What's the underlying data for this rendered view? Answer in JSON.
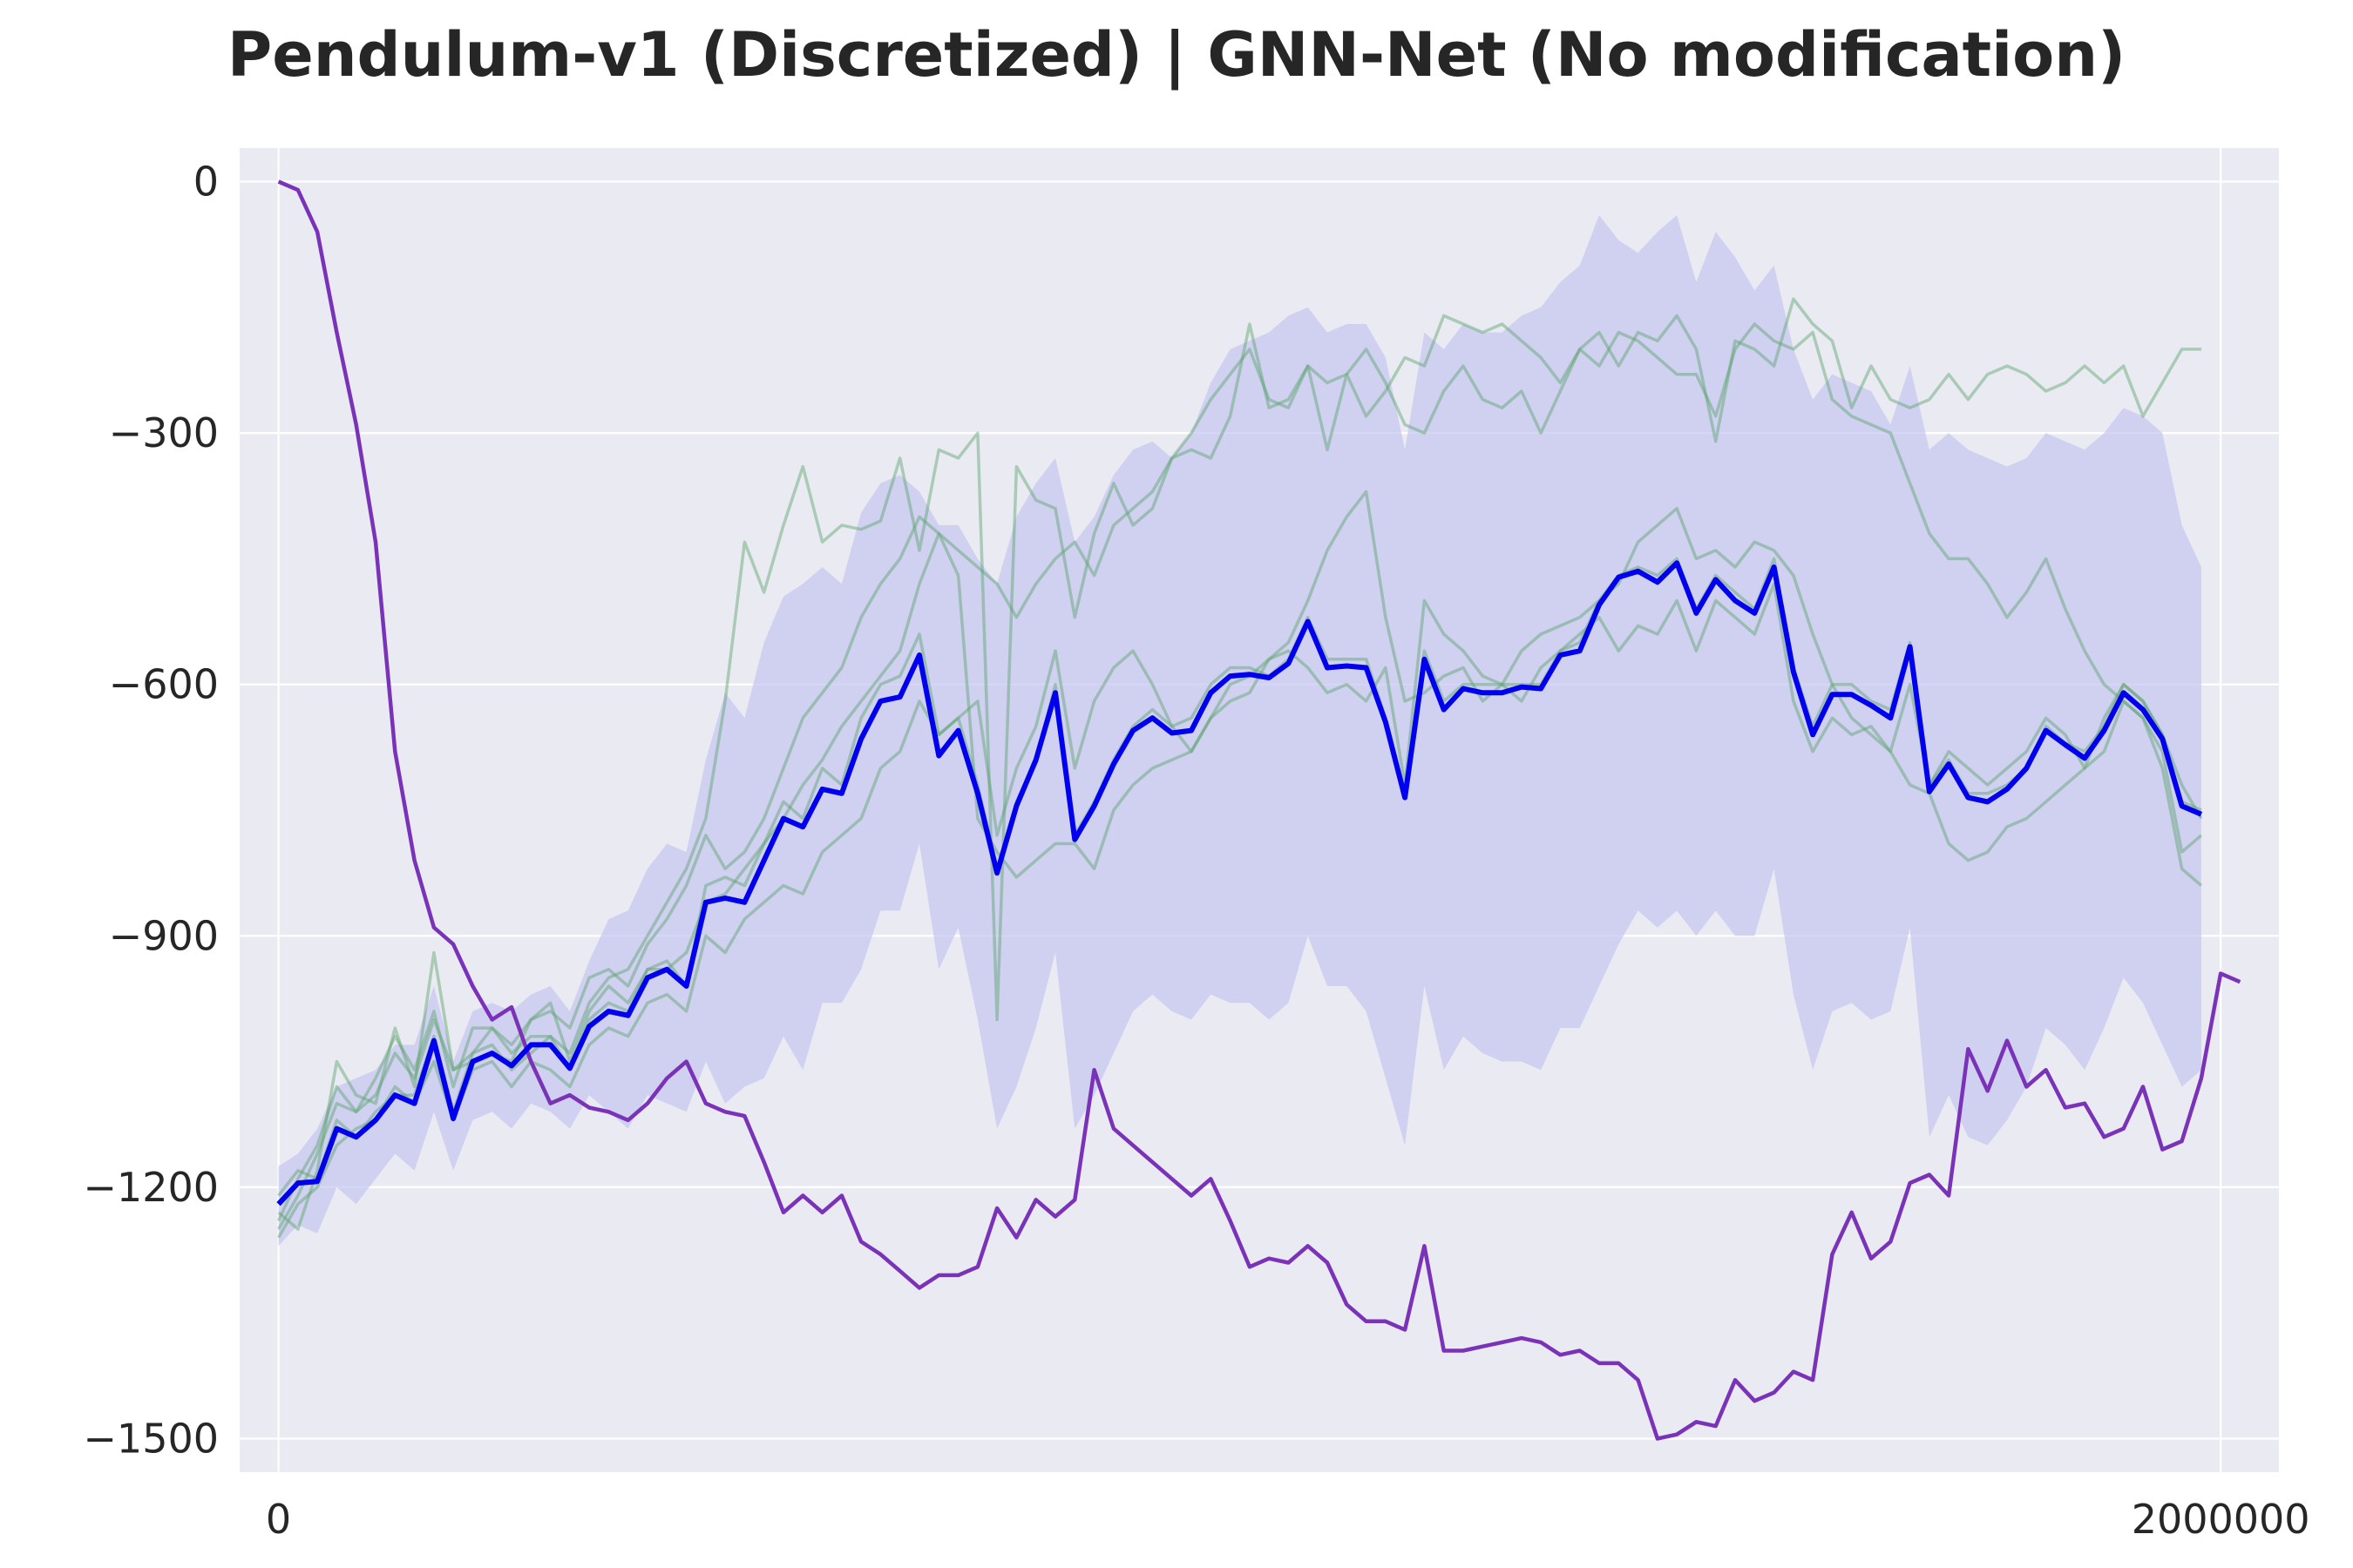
{
  "chart_data": {
    "type": "line",
    "title": "Pendulum-v1 (Discretized) | GNN-Net (No modification)",
    "xlabel": "",
    "ylabel": "",
    "xlim": [
      -40000,
      2060000
    ],
    "ylim": [
      -1540,
      40
    ],
    "x_ticks": [
      0,
      2000000
    ],
    "x_tick_labels": [
      "0",
      "2000000"
    ],
    "y_ticks": [
      0,
      -300,
      -600,
      -900,
      -1200,
      -1500
    ],
    "y_tick_labels": [
      "0",
      "−300",
      "−600",
      "−900",
      "−1200",
      "−1500"
    ],
    "grid": true,
    "legend": "none",
    "colors": {
      "background": "#eaeaf2",
      "grid": "#ffffff",
      "mean": "#0000ee",
      "band": "#c7c7f0",
      "runs": "#5aa36a",
      "baseline": "#7a33b8"
    },
    "x_start": 0,
    "x_step": 20000,
    "series": [
      {
        "role": "mean",
        "values": [
          -1220,
          -1195,
          -1193,
          -1130,
          -1140,
          -1120,
          -1090,
          -1100,
          -1025,
          -1118,
          -1050,
          -1040,
          -1055,
          -1030,
          -1030,
          -1058,
          -1008,
          -990,
          -995,
          -950,
          -940,
          -960,
          -860,
          -855,
          -860,
          -810,
          -760,
          -770,
          -725,
          -730,
          -665,
          -620,
          -615,
          -565,
          -685,
          -655,
          -730,
          -825,
          -745,
          -690,
          -610,
          -785,
          -745,
          -695,
          -655,
          -640,
          -658,
          -655,
          -610,
          -590,
          -588,
          -592,
          -575,
          -525,
          -580,
          -578,
          -580,
          -645,
          -735,
          -570,
          -630,
          -605,
          -610,
          -610,
          -603,
          -605,
          -565,
          -560,
          -505,
          -472,
          -465,
          -478,
          -455,
          -515,
          -475,
          -500,
          -515,
          -460,
          -585,
          -660,
          -612,
          -612,
          -625,
          -640,
          -555,
          -728,
          -695,
          -735,
          -740,
          -725,
          -700,
          -655,
          -672,
          -688,
          -655,
          -610,
          -630,
          -665,
          -745,
          -755
        ]
      },
      {
        "role": "band-upper",
        "values": [
          -1175,
          -1160,
          -1130,
          -1080,
          -1070,
          -1060,
          -1030,
          -1030,
          -960,
          -1050,
          -990,
          -980,
          -990,
          -970,
          -960,
          -990,
          -930,
          -880,
          -870,
          -820,
          -790,
          -800,
          -690,
          -610,
          -640,
          -550,
          -495,
          -480,
          -460,
          -480,
          -395,
          -360,
          -350,
          -370,
          -410,
          -410,
          -450,
          -480,
          -400,
          -360,
          -330,
          -430,
          -400,
          -350,
          -320,
          -310,
          -330,
          -300,
          -240,
          -200,
          -190,
          -180,
          -160,
          -150,
          -180,
          -170,
          -170,
          -210,
          -320,
          -180,
          -200,
          -170,
          -180,
          -180,
          -160,
          -150,
          -120,
          -100,
          -40,
          -70,
          -85,
          -60,
          -40,
          -120,
          -60,
          -90,
          -130,
          -100,
          -200,
          -260,
          -230,
          -240,
          -250,
          -290,
          -220,
          -320,
          -300,
          -320,
          -330,
          -340,
          -330,
          -300,
          -310,
          -320,
          -300,
          -270,
          -280,
          -300,
          -410,
          -460
        ]
      },
      {
        "role": "band-lower",
        "values": [
          -1270,
          -1245,
          -1255,
          -1200,
          -1220,
          -1190,
          -1160,
          -1180,
          -1110,
          -1180,
          -1120,
          -1110,
          -1130,
          -1100,
          -1110,
          -1130,
          -1090,
          -1110,
          -1130,
          -1090,
          -1100,
          -1110,
          -1050,
          -1100,
          -1080,
          -1070,
          -1020,
          -1060,
          -980,
          -980,
          -940,
          -870,
          -870,
          -790,
          -940,
          -890,
          -1000,
          -1130,
          -1080,
          -1010,
          -920,
          -1130,
          -1090,
          -1040,
          -990,
          -970,
          -990,
          -1000,
          -970,
          -980,
          -980,
          -1000,
          -980,
          -900,
          -960,
          -960,
          -990,
          -1070,
          -1150,
          -960,
          -1060,
          -1020,
          -1040,
          -1050,
          -1050,
          -1060,
          -1010,
          -1010,
          -960,
          -910,
          -870,
          -890,
          -870,
          -900,
          -870,
          -900,
          -900,
          -820,
          -970,
          -1060,
          -990,
          -980,
          -1000,
          -990,
          -890,
          -1140,
          -1090,
          -1140,
          -1150,
          -1120,
          -1080,
          -1010,
          -1030,
          -1060,
          -1010,
          -950,
          -980,
          -1030,
          -1080,
          -1060
        ]
      },
      {
        "role": "baseline",
        "values": [
          0,
          -10,
          -60,
          -180,
          -290,
          -430,
          -680,
          -810,
          -890,
          -910,
          -960,
          -1000,
          -985,
          -1050,
          -1100,
          -1090,
          -1105,
          -1110,
          -1120,
          -1100,
          -1070,
          -1050,
          -1100,
          -1110,
          -1115,
          -1170,
          -1230,
          -1210,
          -1230,
          -1210,
          -1265,
          -1280,
          -1300,
          -1320,
          -1305,
          -1305,
          -1295,
          -1225,
          -1260,
          -1215,
          -1235,
          -1215,
          -1060,
          -1130,
          -1150,
          -1170,
          -1190,
          -1210,
          -1190,
          -1240,
          -1295,
          -1285,
          -1290,
          -1270,
          -1290,
          -1340,
          -1360,
          -1360,
          -1370,
          -1270,
          -1395,
          -1395,
          -1390,
          -1385,
          -1380,
          -1385,
          -1400,
          -1395,
          -1410,
          -1410,
          -1430,
          -1500,
          -1495,
          -1480,
          -1485,
          -1430,
          -1455,
          -1445,
          -1420,
          -1430,
          -1280,
          -1230,
          -1285,
          -1265,
          -1195,
          -1185,
          -1210,
          -1035,
          -1085,
          -1025,
          -1080,
          -1060,
          -1105,
          -1100,
          -1140,
          -1130,
          -1080,
          -1155,
          -1145,
          -1070,
          -945,
          -955
        ]
      },
      {
        "role": "run",
        "values": [
          -1250,
          -1210,
          -1160,
          -1100,
          -1110,
          -1070,
          -1020,
          -1060,
          -990,
          -1080,
          -1010,
          -1010,
          -1040,
          -1020,
          -1020,
          -1040,
          -980,
          -950,
          -940,
          -900,
          -860,
          -820,
          -760,
          -620,
          -430,
          -490,
          -410,
          -340,
          -430,
          -410,
          -415,
          -405,
          -330,
          -440,
          -320,
          -330,
          -300,
          -1000,
          -340,
          -380,
          -390,
          -520,
          -420,
          -360,
          -410,
          -390,
          -330,
          -320,
          -330,
          -280,
          -170,
          -270,
          -260,
          -220,
          -320,
          -230,
          -280,
          -250,
          -210,
          -220,
          -160,
          -170,
          -180,
          -170,
          -190,
          -210,
          -240,
          -200,
          -180,
          -220,
          -180,
          -190,
          -160,
          -200,
          -310,
          -190,
          -200,
          -220,
          -140,
          -170,
          -190,
          -270,
          -220,
          -260,
          -270,
          -260,
          -230,
          -260,
          -230,
          -220,
          -230,
          -250,
          -240,
          -220,
          -240,
          -220,
          -280,
          -240,
          -200,
          -200
        ]
      },
      {
        "role": "run",
        "values": [
          -1240,
          -1190,
          -1150,
          -1080,
          -1110,
          -1090,
          -1040,
          -1070,
          -1000,
          -1060,
          -1040,
          -1010,
          -1030,
          -1000,
          -990,
          -1010,
          -950,
          -940,
          -960,
          -910,
          -880,
          -840,
          -780,
          -820,
          -800,
          -760,
          -700,
          -640,
          -610,
          -580,
          -520,
          -480,
          -450,
          -400,
          -420,
          -440,
          -460,
          -480,
          -520,
          -480,
          -450,
          -430,
          -470,
          -410,
          -390,
          -370,
          -330,
          -300,
          -260,
          -230,
          -200,
          -260,
          -270,
          -220,
          -240,
          -230,
          -200,
          -240,
          -290,
          -300,
          -250,
          -220,
          -260,
          -270,
          -250,
          -300,
          -250,
          -200,
          -220,
          -180,
          -190,
          -210,
          -230,
          -230,
          -280,
          -200,
          -170,
          -190,
          -200,
          -180,
          -260,
          -280,
          -290,
          -300,
          -360,
          -420,
          -450,
          -450,
          -480,
          -520,
          -490,
          -450,
          -510,
          -560,
          -600,
          -620,
          -640,
          -680,
          -800,
          -780
        ]
      },
      {
        "role": "run",
        "values": [
          -1230,
          -1250,
          -1180,
          -1050,
          -1090,
          -1100,
          -1010,
          -1080,
          -920,
          -1060,
          -1050,
          -1040,
          -1050,
          -1000,
          -980,
          -1050,
          -990,
          -960,
          -980,
          -940,
          -940,
          -920,
          -860,
          -850,
          -820,
          -790,
          -760,
          -720,
          -690,
          -650,
          -620,
          -590,
          -560,
          -480,
          -420,
          -470,
          -760,
          -800,
          -830,
          -810,
          -790,
          -790,
          -820,
          -750,
          -720,
          -700,
          -690,
          -680,
          -640,
          -620,
          -610,
          -570,
          -550,
          -500,
          -440,
          -400,
          -370,
          -520,
          -620,
          -610,
          -590,
          -580,
          -620,
          -600,
          -560,
          -540,
          -530,
          -520,
          -500,
          -480,
          -430,
          -410,
          -390,
          -450,
          -440,
          -460,
          -430,
          -440,
          -470,
          -540,
          -600,
          -640,
          -660,
          -680,
          -720,
          -730,
          -790,
          -810,
          -800,
          -770,
          -760,
          -740,
          -720,
          -700,
          -680,
          -620,
          -640,
          -700,
          -820,
          -840
        ]
      },
      {
        "role": "run",
        "values": [
          -1260,
          -1220,
          -1200,
          -1150,
          -1130,
          -1120,
          -1080,
          -1100,
          -1050,
          -1120,
          -1060,
          -1050,
          -1080,
          -1050,
          -1060,
          -1080,
          -1030,
          -1010,
          -1020,
          -980,
          -970,
          -990,
          -900,
          -920,
          -880,
          -860,
          -840,
          -850,
          -800,
          -780,
          -760,
          -700,
          -680,
          -620,
          -660,
          -640,
          -620,
          -780,
          -700,
          -650,
          -560,
          -700,
          -620,
          -580,
          -560,
          -600,
          -650,
          -680,
          -640,
          -600,
          -590,
          -570,
          -560,
          -580,
          -610,
          -600,
          -620,
          -580,
          -720,
          -500,
          -540,
          -560,
          -590,
          -600,
          -620,
          -580,
          -560,
          -540,
          -520,
          -560,
          -530,
          -540,
          -500,
          -560,
          -500,
          -520,
          -540,
          -480,
          -620,
          -680,
          -640,
          -660,
          -650,
          -680,
          -600,
          -720,
          -680,
          -700,
          -720,
          -700,
          -680,
          -640,
          -660,
          -700,
          -640,
          -600,
          -620,
          -660,
          -720,
          -760
        ]
      },
      {
        "role": "run",
        "values": [
          -1210,
          -1180,
          -1190,
          -1120,
          -1140,
          -1110,
          -1090,
          -1090,
          -1020,
          -1110,
          -1040,
          -1030,
          -1060,
          -1040,
          -1020,
          -1060,
          -1000,
          -980,
          -990,
          -940,
          -930,
          -960,
          -840,
          -830,
          -840,
          -790,
          -740,
          -760,
          -700,
          -720,
          -640,
          -600,
          -590,
          -540,
          -660,
          -640,
          -720,
          -820,
          -740,
          -690,
          -600,
          -780,
          -740,
          -690,
          -650,
          -630,
          -650,
          -640,
          -600,
          -580,
          -580,
          -590,
          -570,
          -520,
          -570,
          -570,
          -570,
          -640,
          -730,
          -560,
          -620,
          -600,
          -600,
          -600,
          -600,
          -600,
          -560,
          -550,
          -500,
          -470,
          -460,
          -470,
          -450,
          -510,
          -470,
          -490,
          -510,
          -450,
          -580,
          -650,
          -600,
          -600,
          -620,
          -630,
          -550,
          -720,
          -690,
          -730,
          -730,
          -720,
          -700,
          -650,
          -670,
          -680,
          -650,
          -600,
          -620,
          -660,
          -740,
          -750
        ]
      }
    ]
  }
}
